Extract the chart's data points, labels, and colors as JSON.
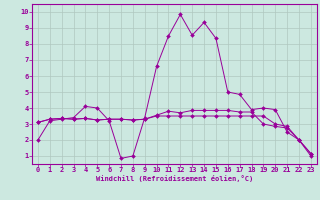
{
  "xlabel": "Windchill (Refroidissement éolien,°C)",
  "bg_color": "#cce8e0",
  "line_color": "#990099",
  "grid_color": "#b0c8c0",
  "xlim": [
    -0.5,
    23.5
  ],
  "ylim": [
    0.5,
    10.5
  ],
  "xticks": [
    0,
    1,
    2,
    3,
    4,
    5,
    6,
    7,
    8,
    9,
    10,
    11,
    12,
    13,
    14,
    15,
    16,
    17,
    18,
    19,
    20,
    21,
    22,
    23
  ],
  "yticks": [
    1,
    2,
    3,
    4,
    5,
    6,
    7,
    8,
    9,
    10
  ],
  "line1_x": [
    0,
    1,
    2,
    3,
    4,
    5,
    6,
    7,
    8,
    9,
    10,
    11,
    12,
    13,
    14,
    15,
    16,
    17,
    18,
    19,
    20,
    21,
    22,
    23
  ],
  "line1_y": [
    2.0,
    3.2,
    3.3,
    3.4,
    4.1,
    4.0,
    3.2,
    0.85,
    1.0,
    3.4,
    6.6,
    8.5,
    9.85,
    8.55,
    9.35,
    8.35,
    5.0,
    4.85,
    3.9,
    4.0,
    3.9,
    2.5,
    2.0,
    1.0
  ],
  "line2_x": [
    0,
    1,
    2,
    3,
    4,
    5,
    6,
    7,
    8,
    9,
    10,
    11,
    12,
    13,
    14,
    15,
    16,
    17,
    18,
    19,
    20,
    21,
    22,
    23
  ],
  "line2_y": [
    3.1,
    3.3,
    3.35,
    3.3,
    3.35,
    3.25,
    3.3,
    3.3,
    3.25,
    3.3,
    3.5,
    3.5,
    3.5,
    3.5,
    3.5,
    3.5,
    3.5,
    3.5,
    3.5,
    3.5,
    3.0,
    2.85,
    2.0,
    1.15
  ],
  "line3_x": [
    0,
    1,
    2,
    3,
    4,
    5,
    6,
    7,
    8,
    9,
    10,
    11,
    12,
    13,
    14,
    15,
    16,
    17,
    18,
    19,
    20,
    21,
    22,
    23
  ],
  "line3_y": [
    3.1,
    3.3,
    3.35,
    3.3,
    3.35,
    3.25,
    3.3,
    3.3,
    3.25,
    3.3,
    3.55,
    3.8,
    3.7,
    3.85,
    3.85,
    3.85,
    3.85,
    3.75,
    3.75,
    3.0,
    2.85,
    2.75,
    2.0,
    1.15
  ]
}
